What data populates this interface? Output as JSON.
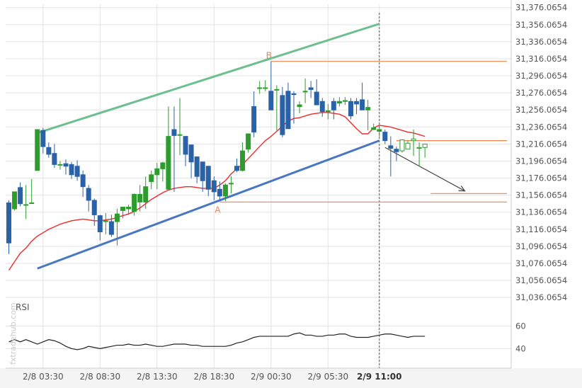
{
  "watermark": "fxtradehub.com",
  "rsi_title": "RSI",
  "colors": {
    "bull": "#2e9b2e",
    "bear": "#2a62a8",
    "ma": "#ee2a2a",
    "upper_channel": "#6dbf8f",
    "lower_channel": "#4a78c0",
    "level": "#f0844a",
    "arrow": "#444444",
    "rsi": "#222222",
    "grid": "#e3e3e3",
    "separator": "#555555"
  },
  "chart_data": {
    "type": "candlestick",
    "x_tick_labels": [
      "2/8 03:30",
      "2/8 08:30",
      "2/8 13:30",
      "2/8 18:30",
      "2/9 00:30",
      "2/9 05:30",
      "2/9 11:00"
    ],
    "x_tick_bar_index": [
      6,
      16,
      26,
      36,
      46,
      56,
      65
    ],
    "highlight_tick": "2/9 11:00",
    "price_ticks": [
      "31,376.0654",
      "31,356.0654",
      "31,336.0654",
      "31,316.0654",
      "31,296.0654",
      "31,276.0654",
      "31,256.0654",
      "31,236.0654",
      "31,216.0654",
      "31,196.0654",
      "31,176.0654",
      "31,156.0654",
      "31,136.0654",
      "31,116.0654",
      "31,096.0654",
      "31,076.0654",
      "31,056.0654",
      "31,036.0654"
    ],
    "price_tick_values": [
      31376.0654,
      31356.0654,
      31336.0654,
      31316.0654,
      31296.0654,
      31276.0654,
      31256.0654,
      31236.0654,
      31216.0654,
      31196.0654,
      31176.0654,
      31156.0654,
      31136.0654,
      31116.0654,
      31096.0654,
      31076.0654,
      31056.0654,
      31036.0654
    ],
    "ylim": [
      31032,
      31380
    ],
    "candles": [
      [
        31147,
        31150,
        31100,
        31087
      ],
      [
        31140,
        31160,
        31160,
        31138
      ],
      [
        31165,
        31171,
        31146,
        31143
      ],
      [
        31145,
        31168,
        31145,
        31128
      ],
      [
        31147,
        31175,
        31147,
        31175
      ],
      [
        31185,
        31185,
        31233,
        31232
      ],
      [
        31232,
        31235,
        31213,
        31205
      ],
      [
        31212,
        31218,
        31204,
        31200
      ],
      [
        31205,
        31216,
        31192,
        31188
      ],
      [
        31192,
        31196,
        31192,
        31186
      ],
      [
        31193,
        31198,
        31190,
        31180
      ],
      [
        31192,
        31195,
        31180,
        31175
      ],
      [
        31190,
        31197,
        31178,
        31173
      ],
      [
        31180,
        31185,
        31166,
        31154
      ],
      [
        31164,
        31168,
        31150,
        31137
      ],
      [
        31150,
        31152,
        31133,
        31120
      ],
      [
        31132,
        31133,
        31113,
        31103
      ],
      [
        31125,
        31135,
        31126,
        31110
      ],
      [
        31125,
        31133,
        31110,
        31107
      ],
      [
        31125,
        31140,
        31134,
        31097
      ],
      [
        31138,
        31140,
        31142,
        31129
      ],
      [
        31140,
        31145,
        31142,
        31134
      ],
      [
        31137,
        31158,
        31157,
        31132
      ],
      [
        31148,
        31168,
        31157,
        31137
      ],
      [
        31148,
        31178,
        31166,
        31140
      ],
      [
        31172,
        31185,
        31180,
        31163
      ],
      [
        31180,
        31194,
        31187,
        31163
      ],
      [
        31187,
        31195,
        31194,
        31172
      ],
      [
        31163,
        31260,
        31225,
        31163
      ],
      [
        31233,
        31260,
        31226,
        31160
      ],
      [
        31227,
        31270,
        31227,
        31203
      ],
      [
        31225,
        31221,
        31204,
        31190
      ],
      [
        31215,
        31215,
        31195,
        31176
      ],
      [
        31201,
        31201,
        31178,
        31170
      ],
      [
        31195,
        31195,
        31173,
        31160
      ],
      [
        31190,
        31190,
        31163,
        31155
      ],
      [
        31173,
        31178,
        31160,
        31150
      ],
      [
        31163,
        31172,
        31155,
        31150
      ],
      [
        31155,
        31170,
        31168,
        31149
      ],
      [
        31170,
        31178,
        31170,
        31158
      ],
      [
        31190,
        31199,
        31185,
        31183
      ],
      [
        31185,
        31218,
        31208,
        31184
      ],
      [
        31210,
        31228,
        31228,
        31206
      ],
      [
        31260,
        31278,
        31230,
        31224
      ],
      [
        31282,
        31290,
        31282,
        31275
      ],
      [
        31282,
        31291,
        31282,
        31278
      ],
      [
        31278,
        31313,
        31256,
        31256
      ],
      [
        31280,
        31285,
        31280,
        31232
      ],
      [
        31273,
        31283,
        31227,
        31224
      ],
      [
        31278,
        31288,
        31234,
        31234
      ],
      [
        31275,
        31278,
        31274,
        31240
      ],
      [
        31260,
        31266,
        31262,
        31252
      ],
      [
        31278,
        31293,
        31278,
        31264
      ],
      [
        31282,
        31290,
        31280,
        31270
      ],
      [
        31277,
        31292,
        31262,
        31262
      ],
      [
        31266,
        31270,
        31254,
        31248
      ],
      [
        31254,
        31263,
        31255,
        31245
      ],
      [
        31266,
        31270,
        31256,
        31245
      ],
      [
        31264,
        31271,
        31266,
        31260
      ],
      [
        31266,
        31271,
        31267,
        31262
      ],
      [
        31266,
        31270,
        31249,
        31245
      ],
      [
        31266,
        31270,
        31263,
        31251
      ],
      [
        31268,
        31288,
        31256,
        31256
      ],
      [
        31256,
        31268,
        31259,
        31232
      ],
      [
        31233,
        31240,
        31235,
        31234
      ],
      [
        31231,
        31236,
        31233,
        31225
      ],
      [
        31230,
        31233,
        31220,
        31216
      ],
      [
        31214,
        31225,
        31211,
        31178
      ],
      [
        31210,
        31213,
        31207,
        31196
      ],
      [
        31208,
        31220,
        31221,
        31206
      ],
      [
        31210,
        31220,
        31217,
        31212
      ],
      [
        31220,
        31233,
        31222,
        31202
      ],
      [
        31211,
        31218,
        31212,
        31190
      ],
      [
        31212,
        31216,
        31216,
        31200
      ]
    ],
    "ma_series": [
      31068,
      31078,
      31088,
      31094,
      31102,
      31108,
      31112,
      31116,
      31119,
      31122,
      31124,
      31126,
      31127,
      31128,
      31127,
      31126,
      31126,
      31127,
      31128,
      31130,
      31132,
      31134,
      31137,
      31141,
      31146,
      31151,
      31155,
      31159,
      31162,
      31164,
      31165,
      31166,
      31166,
      31165,
      31164,
      31164,
      31164,
      31168,
      31173,
      31181,
      31187,
      31192,
      31199,
      31206,
      31213,
      31220,
      31225,
      31231,
      31237,
      31243,
      31246,
      31247,
      31249,
      31251,
      31252,
      31253,
      31253,
      31252,
      31251,
      31248,
      31241,
      31234,
      31228,
      31228,
      31235,
      31238,
      31237,
      31236,
      31234,
      31232,
      31230,
      31229,
      31227,
      31225
    ],
    "upper_channel": [
      [
        5,
        31229
      ],
      [
        65,
        31357
      ]
    ],
    "lower_channel": [
      [
        5,
        31070
      ],
      [
        65,
        31220
      ]
    ],
    "levels": [
      {
        "label": "B",
        "value": 31313,
        "from_bar": 46
      },
      {
        "label": "A",
        "value": 31148,
        "from_bar": 37
      },
      {
        "label": "",
        "value": 31220,
        "from_bar": 68
      },
      {
        "label": "",
        "value": 31158,
        "from_bar": 74
      }
    ],
    "forecast_arrow": {
      "from": [
        66,
        31212
      ],
      "to": [
        80,
        31161
      ]
    },
    "rsi": {
      "values": [
        46,
        48,
        46,
        48,
        46,
        44,
        46,
        48,
        47,
        45,
        42,
        40,
        39,
        40,
        42,
        41,
        40,
        41,
        42,
        43,
        43,
        44,
        43,
        43,
        44,
        43,
        42,
        42,
        43,
        44,
        44,
        44,
        43,
        43,
        42,
        42,
        42,
        42,
        42,
        43,
        45,
        46,
        48,
        50,
        51,
        51,
        51,
        51,
        51,
        51,
        53,
        54,
        52,
        52,
        51,
        51,
        52,
        52,
        53,
        53,
        51,
        50,
        50,
        50,
        51,
        52,
        53,
        53,
        52,
        51,
        50,
        51,
        51,
        51
      ],
      "ticks": [
        60,
        40
      ],
      "range": [
        32,
        68
      ]
    }
  }
}
